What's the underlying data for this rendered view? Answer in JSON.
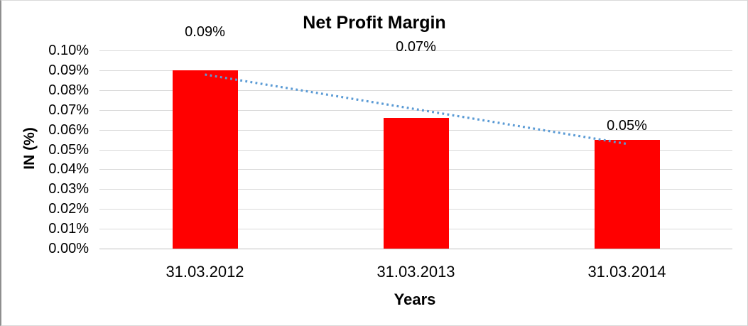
{
  "chart_data": {
    "type": "bar",
    "title": "Net Profit Margin",
    "xlabel": "Years",
    "ylabel": "IN (%)",
    "categories": [
      "31.03.2012",
      "31.03.2013",
      "31.03.2014"
    ],
    "values": [
      0.09,
      0.066,
      0.055
    ],
    "data_labels": [
      "0.09%",
      "0.07%",
      "0.05%"
    ],
    "yticks": [
      "0.00%",
      "0.01%",
      "0.02%",
      "0.03%",
      "0.04%",
      "0.05%",
      "0.06%",
      "0.07%",
      "0.08%",
      "0.09%",
      "0.10%"
    ],
    "ylim": [
      0,
      0.1
    ],
    "grid": true,
    "legend": false,
    "bar_color": "#ff0000",
    "gridline_color": "#d9d9d9",
    "axis_line_color": "#bfbfbf",
    "text_color": "#000000",
    "trendline": {
      "type": "linear",
      "style": "dotted",
      "color": "#5b9bd5"
    }
  }
}
